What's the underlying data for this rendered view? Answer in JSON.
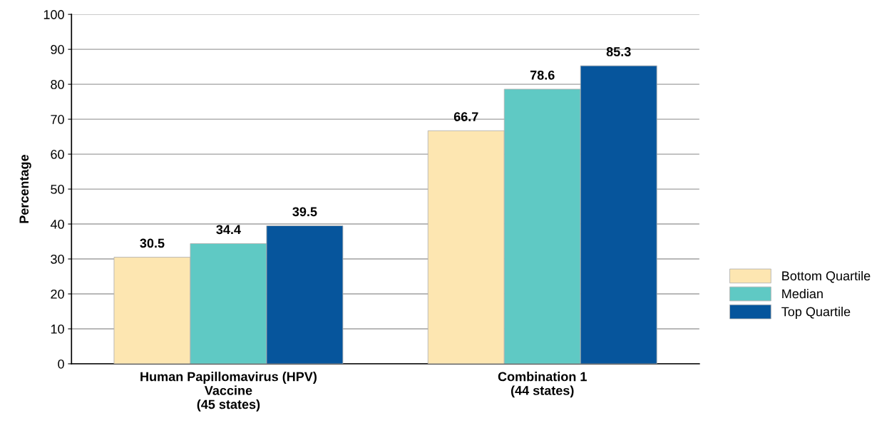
{
  "chart_data": {
    "type": "bar",
    "ylabel": "Percentage",
    "categories": [
      "Human Papillomavirus (HPV)\nVaccine\n(45 states)",
      "Combination 1\n(44 states)"
    ],
    "series": [
      {
        "name": "Bottom Quartile",
        "color": "#fde6b1",
        "values": [
          30.5,
          66.7
        ]
      },
      {
        "name": "Median",
        "color": "#5fc9c4",
        "values": [
          34.4,
          78.6
        ]
      },
      {
        "name": "Top Quartile",
        "color": "#06559c",
        "values": [
          39.5,
          85.3
        ]
      }
    ],
    "ylim": [
      0,
      100
    ],
    "yticks": [
      0,
      10,
      20,
      30,
      40,
      50,
      60,
      70,
      80,
      90,
      100
    ],
    "grid": "y",
    "legend": "right",
    "data_labels": true
  }
}
